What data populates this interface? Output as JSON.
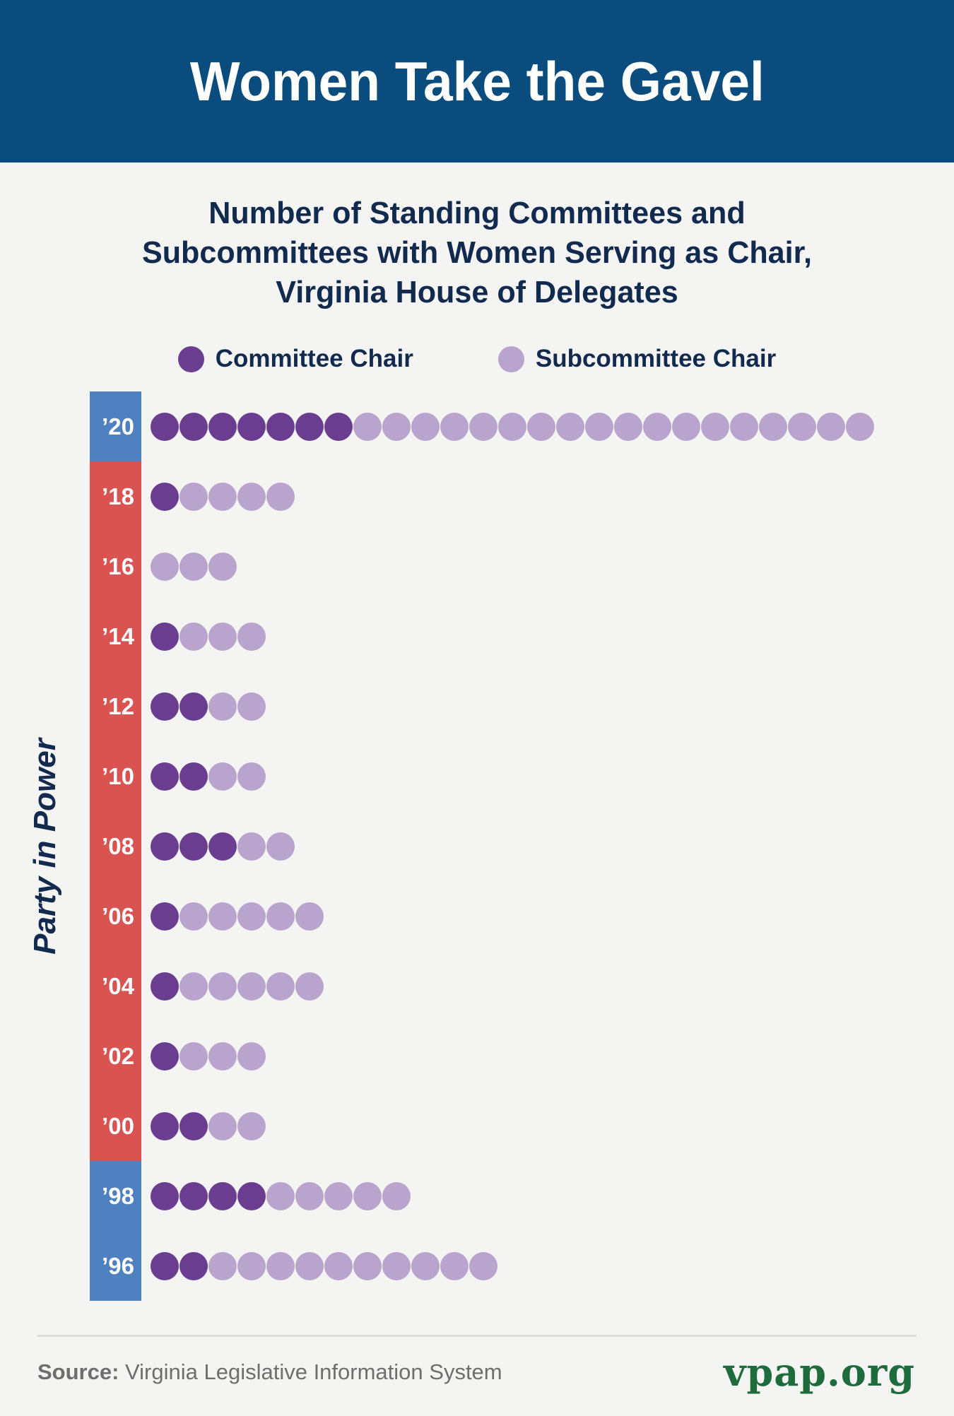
{
  "header": {
    "title": "Women Take the Gavel"
  },
  "subtitle": {
    "lines": [
      "Number of Standing Committees and",
      "Subcommittees with Women Serving as Chair,",
      "Virginia House of Delegates"
    ]
  },
  "legend": [
    {
      "label": "Committee Chair",
      "color": "#6a3d91"
    },
    {
      "label": "Subcommittee Chair",
      "color": "#b8a4cd"
    }
  ],
  "y_axis_label": "Party in Power",
  "chart_data": {
    "type": "dot-matrix",
    "title": "Number of Standing Committees and Subcommittees with Women Serving as Chair, Virginia House of Delegates",
    "categories": [
      "’20",
      "’18",
      "’16",
      "’14",
      "’12",
      "’10",
      "’08",
      "’06",
      "’04",
      "’02",
      "’00",
      "’98",
      "’96"
    ],
    "series": [
      {
        "name": "Committee Chair",
        "values": [
          7,
          1,
          0,
          1,
          2,
          2,
          3,
          1,
          1,
          1,
          2,
          4,
          2
        ]
      },
      {
        "name": "Subcommittee Chair",
        "values": [
          18,
          4,
          3,
          3,
          2,
          2,
          2,
          5,
          5,
          3,
          2,
          5,
          10
        ]
      }
    ],
    "party_in_power": [
      "D",
      "R",
      "R",
      "R",
      "R",
      "R",
      "R",
      "R",
      "R",
      "R",
      "R",
      "D",
      "D"
    ],
    "legend_position": "top",
    "grid": false
  },
  "colors": {
    "header_bg": "#0a4c7e",
    "page_bg": "#f4f5f3",
    "navy_text": "#132a4f",
    "committee": "#6a3d91",
    "subcommittee": "#b8a4cd",
    "party": {
      "D": "#4f81c1",
      "R": "#d95350"
    },
    "brand_green": "#1e6b3c",
    "divider": "#dcdcdc",
    "footer_gray": "#6e6e6e"
  },
  "footer": {
    "source_label": "Source:",
    "source_text": "Virginia Legislative Information System",
    "brand": "vpap.org"
  }
}
